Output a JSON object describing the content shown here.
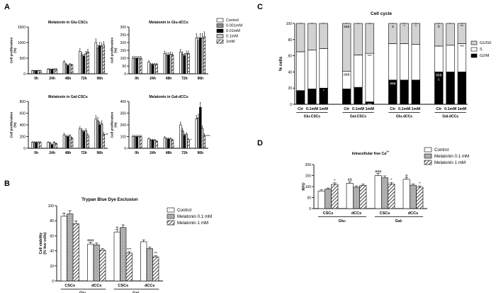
{
  "panel_letters": [
    "A",
    "B",
    "C",
    "D"
  ],
  "chart_data": [
    {
      "id": "a1",
      "type": "bar",
      "title": "Melatonin in Glu-CSCs",
      "ylabel": "Cell proliferation (%)",
      "ylim": [
        0,
        1500
      ],
      "yticks": [
        0,
        500,
        1000,
        1500
      ],
      "categories": [
        "0h",
        "24h",
        "48h",
        "72h",
        "96h"
      ],
      "series": [
        {
          "name": "Control",
          "values": [
            100,
            150,
            380,
            720,
            1000
          ]
        },
        {
          "name": "0.001mM",
          "values": [
            100,
            140,
            300,
            600,
            820
          ]
        },
        {
          "name": "0.01mM",
          "values": [
            100,
            140,
            260,
            560,
            900
          ]
        },
        {
          "name": "0.1mM",
          "values": [
            100,
            150,
            300,
            640,
            880
          ]
        },
        {
          "name": "1mM",
          "values": [
            100,
            150,
            280,
            700,
            920
          ]
        }
      ],
      "legend": [
        "Control",
        "0.001mM",
        "0.01mM",
        "0.1mM",
        "1mM"
      ],
      "annotations": []
    },
    {
      "id": "a2",
      "type": "bar",
      "title": "Melatonin in Glu-dCCs",
      "ylabel": "Cell proliferation (%)",
      "ylim": [
        0,
        300
      ],
      "yticks": [
        0,
        50,
        100,
        150,
        200,
        250,
        300
      ],
      "categories": [
        "0h",
        "24h",
        "48h",
        "72h",
        "96h"
      ],
      "series": [
        {
          "name": "Control",
          "values": [
            100,
            75,
            130,
            140,
            230
          ]
        },
        {
          "name": "0.001mM",
          "values": [
            100,
            60,
            120,
            125,
            210
          ]
        },
        {
          "name": "0.01mM",
          "values": [
            100,
            60,
            120,
            115,
            230
          ]
        },
        {
          "name": "0.1mM",
          "values": [
            100,
            60,
            125,
            130,
            230
          ]
        },
        {
          "name": "1mM",
          "values": [
            100,
            60,
            120,
            130,
            240
          ]
        }
      ],
      "annotations": []
    },
    {
      "id": "a3",
      "type": "bar",
      "title": "Melatonin in Gal-CSCs",
      "ylabel": "Cell proliferation (%)",
      "ylim": [
        0,
        800
      ],
      "yticks": [
        0,
        200,
        400,
        600,
        800
      ],
      "categories": [
        "0h",
        "24h",
        "48h",
        "72h",
        "96h"
      ],
      "series": [
        {
          "name": "Control",
          "values": [
            100,
            100,
            230,
            330,
            500
          ]
        },
        {
          "name": "0.001mM",
          "values": [
            100,
            90,
            200,
            300,
            470
          ]
        },
        {
          "name": "0.01mM",
          "values": [
            100,
            60,
            200,
            280,
            400
          ]
        },
        {
          "name": "0.1mM",
          "values": [
            100,
            100,
            210,
            300,
            420
          ]
        },
        {
          "name": "1mM",
          "values": [
            100,
            80,
            170,
            220,
            240
          ]
        }
      ],
      "annotations": [
        {
          "category": "96h",
          "series": "1mM",
          "text": "**"
        }
      ]
    },
    {
      "id": "a4",
      "type": "bar",
      "title": "Melatonin in Gal-dCCs",
      "ylabel": "Cell proliferation (%)",
      "ylim": [
        0,
        400
      ],
      "yticks": [
        0,
        100,
        200,
        300,
        400
      ],
      "categories": [
        "0h",
        "24h",
        "48h",
        "72h",
        "96h"
      ],
      "series": [
        {
          "name": "Control",
          "values": [
            100,
            80,
            90,
            200,
            250
          ]
        },
        {
          "name": "0.001mM",
          "values": [
            100,
            70,
            80,
            150,
            260
          ]
        },
        {
          "name": "0.01mM",
          "values": [
            100,
            70,
            80,
            110,
            350
          ]
        },
        {
          "name": "0.1mM",
          "values": [
            100,
            70,
            80,
            120,
            170
          ]
        },
        {
          "name": "1mM",
          "values": [
            100,
            60,
            70,
            75,
            110
          ]
        }
      ],
      "annotations": [
        {
          "category": "72h",
          "series": "1mM",
          "text": "*"
        },
        {
          "category": "96h",
          "series": "1mM",
          "text": "***"
        }
      ]
    },
    {
      "id": "b",
      "type": "bar",
      "title": "Trypan Blue Dye Exclusion",
      "ylabel": "Cell viability (% live cells)",
      "ylim": [
        0,
        100
      ],
      "yticks": [
        0,
        20,
        40,
        60,
        80,
        100
      ],
      "categories": [
        "CSCs",
        "dCCs",
        "CSCs",
        "dCCs"
      ],
      "groups": [
        {
          "label": "Glu-",
          "span": [
            0,
            1
          ]
        },
        {
          "label": "Gal-",
          "span": [
            2,
            3
          ]
        }
      ],
      "series": [
        {
          "name": "Control",
          "values": [
            86,
            49,
            65,
            52
          ]
        },
        {
          "name": "Melatonin 0.1 mM",
          "values": [
            89,
            48,
            71,
            43
          ]
        },
        {
          "name": "Melatonin 1 mM",
          "values": [
            76,
            41,
            37,
            32
          ]
        }
      ],
      "legend": [
        "Control",
        "Melatonin 0.1 mM",
        "Melatonin 1 mM"
      ],
      "annotations": [
        {
          "category": 1,
          "series": "Control",
          "text": "aaa"
        },
        {
          "category": 2,
          "series": "Control",
          "text": "a"
        },
        {
          "category": 2,
          "series": "Melatonin 1 mM",
          "text": "***"
        },
        {
          "category": 3,
          "series": "Melatonin 1 mM",
          "text": "**"
        }
      ]
    },
    {
      "id": "c",
      "type": "bar",
      "title": "Cell cycle",
      "ylabel": "% cells",
      "ylim": [
        0,
        100
      ],
      "yticks": [
        0,
        20,
        40,
        60,
        80,
        100
      ],
      "stacked": true,
      "categories": [
        "Ctr",
        "0.1mM",
        "1mM",
        "Ctr",
        "0.1mM",
        "1mM",
        "Ctr",
        "0.1mM",
        "1mM",
        "Ctr",
        "0.1mM",
        "1mM"
      ],
      "groups": [
        {
          "label": "Glu-CSCs",
          "span": [
            0,
            2
          ]
        },
        {
          "label": "Gal-CSCs",
          "span": [
            3,
            5
          ]
        },
        {
          "label": "Glu-dCCs",
          "span": [
            6,
            8
          ]
        },
        {
          "label": "Gal-dCCs",
          "span": [
            9,
            11
          ]
        }
      ],
      "series": [
        {
          "name": "G2/M",
          "values": [
            17,
            19,
            20,
            19,
            21,
            3,
            30,
            30,
            30,
            40,
            40,
            40
          ]
        },
        {
          "name": "S",
          "values": [
            48,
            48,
            49,
            22,
            40,
            60,
            45,
            45,
            44,
            32,
            33,
            35
          ]
        },
        {
          "name": "G1/G0",
          "values": [
            35,
            33,
            31,
            59,
            39,
            37,
            25,
            25,
            26,
            28,
            27,
            25
          ]
        }
      ],
      "legend": [
        "G1/G0",
        "S",
        "G2/M"
      ],
      "annotations": [
        {
          "category": 2,
          "series": "G2/M",
          "text": "*"
        },
        {
          "category": 3,
          "series": "G1/G0",
          "text": "aaa"
        },
        {
          "category": 3,
          "series": "S",
          "text": "aaa"
        },
        {
          "category": 5,
          "series": "S",
          "text": "***"
        },
        {
          "category": 5,
          "series": "G2/M",
          "text": "***"
        },
        {
          "category": 6,
          "series": "G2/M",
          "text": "aaa"
        },
        {
          "category": 6,
          "series": "G1/G0",
          "text": "a"
        },
        {
          "category": 7,
          "series": "G1/G0",
          "text": "*"
        },
        {
          "category": 8,
          "series": "G1/G0",
          "text": "*"
        },
        {
          "category": 9,
          "series": "G1/G0",
          "text": "b"
        },
        {
          "category": 9,
          "series": "G2/M",
          "text": "bbb"
        },
        {
          "category": 9,
          "series": "G2/M",
          "text": "c"
        },
        {
          "category": 11,
          "series": "G1/G0",
          "text": "**"
        },
        {
          "category": 11,
          "series": "S",
          "text": "***"
        }
      ]
    },
    {
      "id": "d",
      "type": "bar",
      "title": "Intracellular free Ca",
      "title_sup": "2+",
      "ylabel": "RFU",
      "ylim": [
        0,
        200
      ],
      "yticks": [
        0,
        50,
        100,
        150,
        200
      ],
      "categories": [
        "CSCs",
        "dCCs",
        "CSCs",
        "dCCs"
      ],
      "groups": [
        {
          "label": "Glu-",
          "span": [
            0,
            1
          ]
        },
        {
          "label": "Gal-",
          "span": [
            2,
            3
          ]
        }
      ],
      "series": [
        {
          "name": "Control",
          "values": [
            80,
            115,
            150,
            133
          ]
        },
        {
          "name": "Melatonin 0.1 mM",
          "values": [
            88,
            97,
            140,
            106
          ]
        },
        {
          "name": "Melatonin 1 mM",
          "values": [
            110,
            105,
            112,
            97
          ]
        }
      ],
      "legend": [
        "Control",
        "Melatonin 0.1 mM",
        "Melatonin 1 mM"
      ],
      "annotations": [
        {
          "category": 0,
          "series": "Melatonin 1 mM",
          "text": "*"
        },
        {
          "category": 1,
          "series": "Control",
          "text": "aa"
        },
        {
          "category": 2,
          "series": "Control",
          "text": "aaa"
        },
        {
          "category": 2,
          "series": "Melatonin 1 mM",
          "text": "*"
        },
        {
          "category": 3,
          "series": "Control",
          "text": "a"
        },
        {
          "category": 3,
          "series": "Melatonin 1 mM",
          "text": "*"
        }
      ]
    }
  ]
}
